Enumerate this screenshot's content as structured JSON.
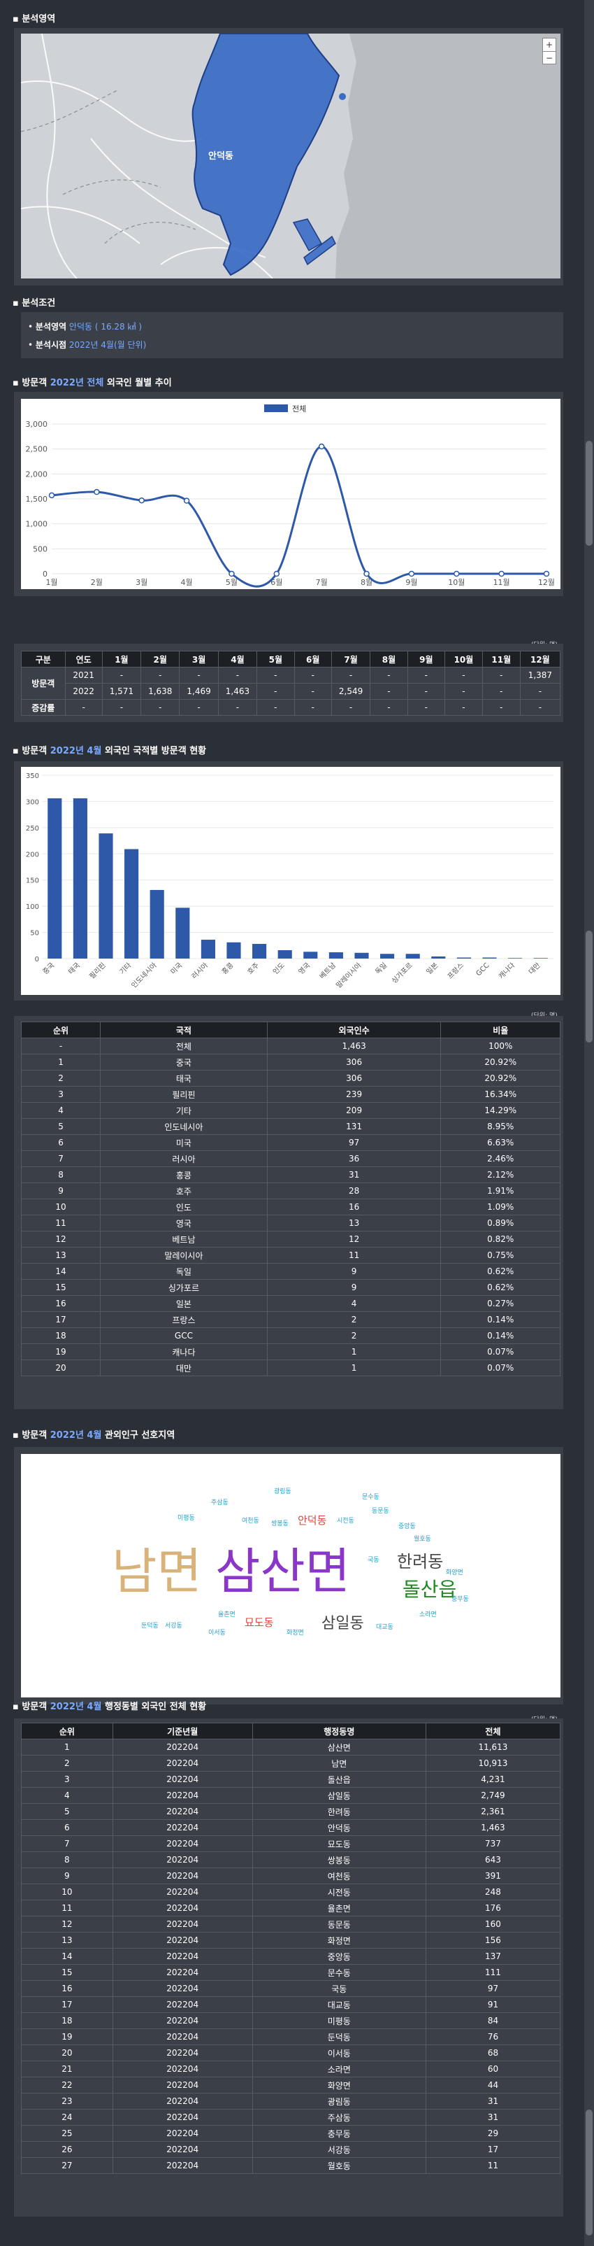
{
  "sections": {
    "area": {
      "title": "분석영역"
    },
    "cond": {
      "title": "분석조건",
      "line1_label": "분석영역",
      "line1_value": "안덕동 ( 16.28 ㎢ )",
      "line2_label": "분석시점",
      "line2_value": "2022년 4월(월 단위)"
    },
    "monthly": {
      "pre": "방문객",
      "hl": "2022년 전체",
      "post": "외국인 월별 추이"
    },
    "nation": {
      "pre": "방문객",
      "hl": "2022년 4월",
      "post": "외국인 국적별 방문객 현황"
    },
    "pref": {
      "pre": "방문객",
      "hl": "2022년 4월",
      "post": "관외인구 선호지역"
    },
    "district": {
      "pre": "방문객",
      "hl": "2022년 4월",
      "post": "행정동별 외국인 전체 현황"
    }
  },
  "map": {
    "label": "안덕동",
    "colors": {
      "region": "#3a6bc6",
      "land": "#cfd2d6",
      "sea": "#b9bcc0"
    }
  },
  "line_chart": {
    "legend": "전체",
    "chart_data": {
      "type": "line",
      "categories": [
        "1월",
        "2월",
        "3월",
        "4월",
        "5월",
        "6월",
        "7월",
        "8월",
        "9월",
        "10월",
        "11월",
        "12월"
      ],
      "series": [
        {
          "name": "전체",
          "values": [
            1571,
            1638,
            1469,
            1463,
            0,
            0,
            2549,
            0,
            0,
            0,
            0,
            0
          ]
        }
      ],
      "ylim": [
        0,
        3000
      ],
      "yticks": [
        "0",
        "500",
        "1,000",
        "1,500",
        "2,000",
        "2,500",
        "3,000"
      ]
    }
  },
  "monthly_table": {
    "unit": "(단위: 명)",
    "headers": [
      "구분",
      "연도",
      "1월",
      "2월",
      "3월",
      "4월",
      "5월",
      "6월",
      "7월",
      "8월",
      "9월",
      "10월",
      "11월",
      "12월"
    ],
    "row_group": "방문객",
    "rows": [
      [
        "2021",
        "-",
        "-",
        "-",
        "-",
        "-",
        "-",
        "-",
        "-",
        "-",
        "-",
        "-",
        "1,387"
      ],
      [
        "2022",
        "1,571",
        "1,638",
        "1,469",
        "1,463",
        "-",
        "-",
        "2,549",
        "-",
        "-",
        "-",
        "-",
        "-"
      ]
    ],
    "rate_label": "증감률",
    "rate_row": [
      "-",
      "-",
      "-",
      "-",
      "-",
      "-",
      "-",
      "-",
      "-",
      "-",
      "-",
      "-",
      "-"
    ]
  },
  "bar_chart": {
    "chart_data": {
      "type": "bar",
      "categories": [
        "중국",
        "태국",
        "필리핀",
        "기타",
        "인도네시아",
        "미국",
        "러시아",
        "홍콩",
        "호주",
        "인도",
        "영국",
        "베트남",
        "말레이시아",
        "독일",
        "싱가포르",
        "일본",
        "프랑스",
        "GCC",
        "캐나다",
        "대만"
      ],
      "values": [
        306,
        306,
        239,
        209,
        131,
        97,
        36,
        31,
        28,
        16,
        13,
        12,
        11,
        9,
        9,
        4,
        2,
        2,
        1,
        1
      ],
      "ylim": [
        0,
        350
      ],
      "yticks": [
        "0",
        "50",
        "100",
        "150",
        "200",
        "250",
        "300",
        "350"
      ]
    }
  },
  "nation_table": {
    "unit": "(단위: 명)",
    "headers": [
      "순위",
      "국적",
      "외국인수",
      "비율"
    ],
    "rows": [
      [
        "-",
        "전체",
        "1,463",
        "100%"
      ],
      [
        "1",
        "중국",
        "306",
        "20.92%"
      ],
      [
        "2",
        "태국",
        "306",
        "20.92%"
      ],
      [
        "3",
        "필리핀",
        "239",
        "16.34%"
      ],
      [
        "4",
        "기타",
        "209",
        "14.29%"
      ],
      [
        "5",
        "인도네시아",
        "131",
        "8.95%"
      ],
      [
        "6",
        "미국",
        "97",
        "6.63%"
      ],
      [
        "7",
        "러시아",
        "36",
        "2.46%"
      ],
      [
        "8",
        "홍콩",
        "31",
        "2.12%"
      ],
      [
        "9",
        "호주",
        "28",
        "1.91%"
      ],
      [
        "10",
        "인도",
        "16",
        "1.09%"
      ],
      [
        "11",
        "영국",
        "13",
        "0.89%"
      ],
      [
        "12",
        "베트남",
        "12",
        "0.82%"
      ],
      [
        "13",
        "말레이시아",
        "11",
        "0.75%"
      ],
      [
        "14",
        "독일",
        "9",
        "0.62%"
      ],
      [
        "15",
        "싱가포르",
        "9",
        "0.62%"
      ],
      [
        "16",
        "일본",
        "4",
        "0.27%"
      ],
      [
        "17",
        "프랑스",
        "2",
        "0.14%"
      ],
      [
        "18",
        "GCC",
        "2",
        "0.14%"
      ],
      [
        "19",
        "캐나다",
        "1",
        "0.07%"
      ],
      [
        "20",
        "대만",
        "1",
        "0.07%"
      ]
    ]
  },
  "wordcloud": {
    "words": [
      {
        "t": "남면",
        "c": "#d9b27a"
      },
      {
        "t": "삼산면",
        "c": "#8a37c9"
      },
      {
        "t": "한려동",
        "c": "#444444"
      },
      {
        "t": "돌산읍",
        "c": "#1e8a1e"
      },
      {
        "t": "삼일동",
        "c": "#444444"
      },
      {
        "t": "안덕동",
        "c": "#e0473a"
      },
      {
        "t": "묘도동",
        "c": "#e0473a"
      },
      {
        "t": "광림동",
        "c": "#2aa0c8"
      },
      {
        "t": "주삼동",
        "c": "#2aa0c8"
      },
      {
        "t": "동문동",
        "c": "#2aa0c8"
      },
      {
        "t": "미평동",
        "c": "#2aa0c8"
      },
      {
        "t": "여천동",
        "c": "#2aa0c8"
      },
      {
        "t": "쌍봉동",
        "c": "#2aa0c8"
      },
      {
        "t": "시전동",
        "c": "#2aa0c8"
      },
      {
        "t": "문수동",
        "c": "#2aa0c8"
      },
      {
        "t": "월호동",
        "c": "#2aa0c8"
      },
      {
        "t": "충무동",
        "c": "#2aa0c8"
      },
      {
        "t": "국동",
        "c": "#2aa0c8"
      },
      {
        "t": "화양면",
        "c": "#2aa0c8"
      },
      {
        "t": "율촌면",
        "c": "#2aa0c8"
      },
      {
        "t": "소라면",
        "c": "#2aa0c8"
      },
      {
        "t": "중앙동",
        "c": "#2aa0c8"
      },
      {
        "t": "둔덕동",
        "c": "#2aa0c8"
      },
      {
        "t": "서강동",
        "c": "#2aa0c8"
      },
      {
        "t": "이서동",
        "c": "#2aa0c8"
      },
      {
        "t": "화정면",
        "c": "#2aa0c8"
      },
      {
        "t": "대교동",
        "c": "#2aa0c8"
      }
    ]
  },
  "district_table": {
    "unit": "(단위: 명)",
    "headers": [
      "순위",
      "기준년월",
      "행정동명",
      "전체"
    ],
    "rows": [
      [
        "1",
        "202204",
        "삼산면",
        "11,613"
      ],
      [
        "2",
        "202204",
        "남면",
        "10,913"
      ],
      [
        "3",
        "202204",
        "돌산읍",
        "4,231"
      ],
      [
        "4",
        "202204",
        "삼일동",
        "2,749"
      ],
      [
        "5",
        "202204",
        "한려동",
        "2,361"
      ],
      [
        "6",
        "202204",
        "안덕동",
        "1,463"
      ],
      [
        "7",
        "202204",
        "묘도동",
        "737"
      ],
      [
        "8",
        "202204",
        "쌍봉동",
        "643"
      ],
      [
        "9",
        "202204",
        "여천동",
        "391"
      ],
      [
        "10",
        "202204",
        "시전동",
        "248"
      ],
      [
        "11",
        "202204",
        "율촌면",
        "176"
      ],
      [
        "12",
        "202204",
        "동문동",
        "160"
      ],
      [
        "13",
        "202204",
        "화정면",
        "156"
      ],
      [
        "14",
        "202204",
        "중앙동",
        "137"
      ],
      [
        "15",
        "202204",
        "문수동",
        "111"
      ],
      [
        "16",
        "202204",
        "국동",
        "97"
      ],
      [
        "17",
        "202204",
        "대교동",
        "91"
      ],
      [
        "18",
        "202204",
        "미평동",
        "84"
      ],
      [
        "19",
        "202204",
        "둔덕동",
        "76"
      ],
      [
        "20",
        "202204",
        "이서동",
        "68"
      ],
      [
        "21",
        "202204",
        "소라면",
        "60"
      ],
      [
        "22",
        "202204",
        "화양면",
        "44"
      ],
      [
        "23",
        "202204",
        "광림동",
        "31"
      ],
      [
        "24",
        "202204",
        "주삼동",
        "31"
      ],
      [
        "25",
        "202204",
        "충무동",
        "29"
      ],
      [
        "26",
        "202204",
        "서강동",
        "17"
      ],
      [
        "27",
        "202204",
        "월호동",
        "11"
      ]
    ]
  }
}
